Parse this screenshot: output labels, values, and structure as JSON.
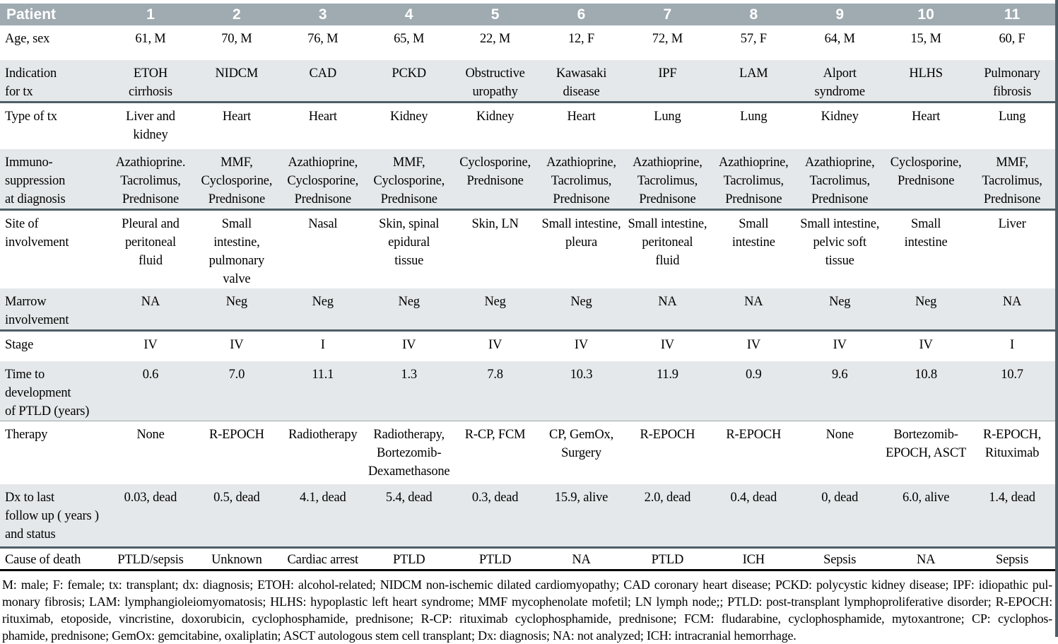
{
  "table": {
    "header": {
      "label": "Patient",
      "patients": [
        "1",
        "2",
        "3",
        "4",
        "5",
        "6",
        "7",
        "8",
        "9",
        "10",
        "11"
      ]
    },
    "rows": [
      {
        "label": "Age, sex",
        "values": [
          "61, M",
          "70, M",
          "76, M",
          "65, M",
          "22, M",
          "12, F",
          "72, M",
          "57, F",
          "64, M",
          "15, M",
          "60, F"
        ]
      },
      {
        "label": "Indication\nfor tx",
        "values": [
          "ETOH\ncirrhosis",
          "NIDCM",
          "CAD",
          "PCKD",
          "Obstructive\nuropathy",
          "Kawasaki\ndisease",
          "IPF",
          "LAM",
          "Alport\nsyndrome",
          "HLHS",
          "Pulmonary\nfibrosis"
        ]
      },
      {
        "label": "Type of tx",
        "values": [
          "Liver and\nkidney",
          "Heart",
          "Heart",
          "Kidney",
          "Kidney",
          "Heart",
          "Lung",
          "Lung",
          "Kidney",
          "Heart",
          "Lung"
        ]
      },
      {
        "label": "Immuno-\nsuppression\nat diagnosis",
        "values": [
          "Azathioprine.\nTacrolimus,\nPrednisone",
          "MMF,\nCyclosporine,\nPrednisone",
          "Azathioprine,\nCyclosporine,\nPrednisone",
          "MMF,\nCyclosporine,\nPrednisone",
          "Cyclosporine,\nPrednisone",
          "Azathioprine,\nTacrolimus,\nPrednisone",
          "Azathioprine,\nTacrolimus,\nPrednisone",
          "Azathioprine,\nTacrolimus,\nPrednisone",
          "Azathioprine,\nTacrolimus,\nPrednisone",
          "Cyclosporine,\nPrednisone",
          "MMF,\nTacrolimus,\nPrednisone"
        ]
      },
      {
        "label": "Site of\ninvolvement",
        "values": [
          "Pleural and\nperitoneal\nfluid",
          "Small\nintestine,\npulmonary valve",
          "Nasal",
          "Skin, spinal\nepidural\ntissue",
          "Skin, LN",
          "Small intestine,\npleura",
          "Small intestine,\nperitoneal\nfluid",
          "Small\nintestine",
          "Small intestine,\npelvic soft\ntissue",
          "Small\nintestine",
          "Liver"
        ]
      },
      {
        "label": "Marrow\ninvolvement",
        "values": [
          "NA",
          "Neg",
          "Neg",
          "Neg",
          "Neg",
          "Neg",
          "NA",
          "NA",
          "Neg",
          "Neg",
          "NA"
        ]
      },
      {
        "label": "Stage",
        "values": [
          "IV",
          "IV",
          "I",
          "IV",
          "IV",
          "IV",
          "IV",
          "IV",
          "IV",
          "IV",
          "I"
        ]
      },
      {
        "label": "Time to\ndevelopment\nof PTLD (years)",
        "values": [
          "0.6",
          "7.0",
          "11.1",
          "1.3",
          "7.8",
          "10.3",
          "11.9",
          "0.9",
          "9.6",
          "10.8",
          "10.7"
        ]
      },
      {
        "label": "Therapy",
        "values": [
          "None",
          "R-EPOCH",
          "Radiotherapy",
          "Radiotherapy,\nBortezomib-\nDexamethasone",
          "R-CP, FCM",
          "CP, GemOx,\nSurgery",
          "R-EPOCH",
          "R-EPOCH",
          "None",
          "Bortezomib-\nEPOCH, ASCT",
          "R-EPOCH,\nRituximab"
        ]
      },
      {
        "label": "Dx to last\nfollow up ( years )\nand status",
        "values": [
          "0.03, dead",
          "0.5, dead",
          "4.1, dead",
          "5.4, dead",
          "0.3, dead",
          "15.9, alive",
          "2.0, dead",
          "0.4, dead",
          "0, dead",
          "6.0, alive",
          "1.4, dead"
        ]
      },
      {
        "label": "Cause of death",
        "values": [
          "PTLD/sepsis",
          "Unknown",
          "Cardiac arrest",
          "PTLD",
          "PTLD",
          "NA",
          "PTLD",
          "ICH",
          "Sepsis",
          "NA",
          "Sepsis"
        ]
      }
    ],
    "footnote_lines": [
      "M: male; F: female; tx: transplant; dx: diagnosis; ETOH: alcohol-related; NIDCM non-ischemic dilated cardiomyopathy; CAD coronary heart disease; PCKD: polycystic kidney disease; IPF: idiopathic pul-",
      "monary fibrosis; LAM: lymphangioleiomyomatosis; HLHS: hypoplastic left heart syndrome; MMF mycophenolate mofetil; LN lymph node;; PTLD: post-transplant lymphoproliferative disorder; R-EPOCH:",
      "rituximab, etoposide, vincristine, doxorubicin, cyclophosphamide, prednisone; R-CP: rituximab  cyclophosphamide, prednisone; FCM: fludarabine, cyclophosphamide, mytoxantrone; CP: cyclophos-",
      "phamide, prednisone; GemOx: gemcitabine, oxaliplatin; ASCT autologous stem cell transplant; Dx: diagnosis; NA: not analyzed; ICH: intracranial hemorrhage."
    ],
    "colors": {
      "header_bg": "#9faab1",
      "row_shade": "#e5e8ea",
      "rule_dark": "#4e5e68",
      "rule_thin": "#9aa7ad",
      "rule_black": "#000000"
    }
  }
}
